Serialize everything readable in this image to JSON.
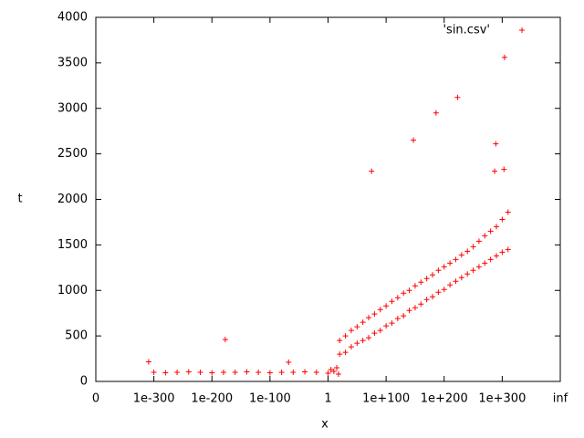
{
  "chart_data": {
    "type": "scatter",
    "xlabel": "x",
    "ylabel": "t",
    "xlim": [
      -400,
      400
    ],
    "xticks": [
      {
        "value": -400,
        "label": "0"
      },
      {
        "value": -300,
        "label": "1e-300"
      },
      {
        "value": -200,
        "label": "1e-200"
      },
      {
        "value": -100,
        "label": "1e-100"
      },
      {
        "value": 0,
        "label": "1"
      },
      {
        "value": 100,
        "label": "1e+100"
      },
      {
        "value": 200,
        "label": "1e+200"
      },
      {
        "value": 300,
        "label": "1e+300"
      },
      {
        "value": 400,
        "label": "inf"
      }
    ],
    "ylim": [
      0,
      4000
    ],
    "yticks": [
      0,
      500,
      1000,
      1500,
      2000,
      2500,
      3000,
      3500,
      4000
    ],
    "legend": "top-right",
    "series": [
      {
        "name": "'sin.csv'",
        "color": "#ff0000",
        "x": [
          -300,
          -280,
          -260,
          -240,
          -220,
          -200,
          -180,
          -160,
          -140,
          -120,
          -100,
          -80,
          -60,
          -40,
          -20,
          -309,
          -177,
          -68,
          0,
          5,
          10,
          15,
          18,
          20,
          20,
          30,
          30,
          40,
          40,
          50,
          50,
          60,
          60,
          70,
          70,
          80,
          80,
          90,
          90,
          100,
          100,
          110,
          110,
          120,
          120,
          130,
          130,
          140,
          140,
          150,
          150,
          160,
          160,
          170,
          170,
          180,
          180,
          190,
          190,
          200,
          200,
          210,
          210,
          220,
          220,
          230,
          230,
          240,
          240,
          250,
          250,
          260,
          260,
          270,
          270,
          280,
          280,
          290,
          290,
          300,
          300,
          310,
          310,
          75,
          147,
          186,
          223,
          287,
          289,
          303,
          304
        ],
        "values": [
          100,
          95,
          100,
          105,
          100,
          95,
          100,
          100,
          105,
          100,
          95,
          100,
          100,
          105,
          100,
          215,
          460,
          210,
          90,
          130,
          110,
          150,
          80,
          300,
          450,
          320,
          500,
          380,
          560,
          420,
          600,
          450,
          650,
          480,
          700,
          530,
          740,
          560,
          790,
          610,
          830,
          640,
          880,
          690,
          920,
          720,
          970,
          780,
          1000,
          810,
          1050,
          850,
          1090,
          900,
          1130,
          930,
          1170,
          980,
          1220,
          1010,
          1260,
          1060,
          1300,
          1100,
          1340,
          1140,
          1390,
          1180,
          1430,
          1220,
          1480,
          1260,
          1540,
          1300,
          1600,
          1340,
          1650,
          1380,
          1700,
          1420,
          1780,
          1450,
          1860,
          2310,
          2650,
          2950,
          3120,
          2310,
          2610,
          2330,
          3560
        ]
      }
    ]
  }
}
